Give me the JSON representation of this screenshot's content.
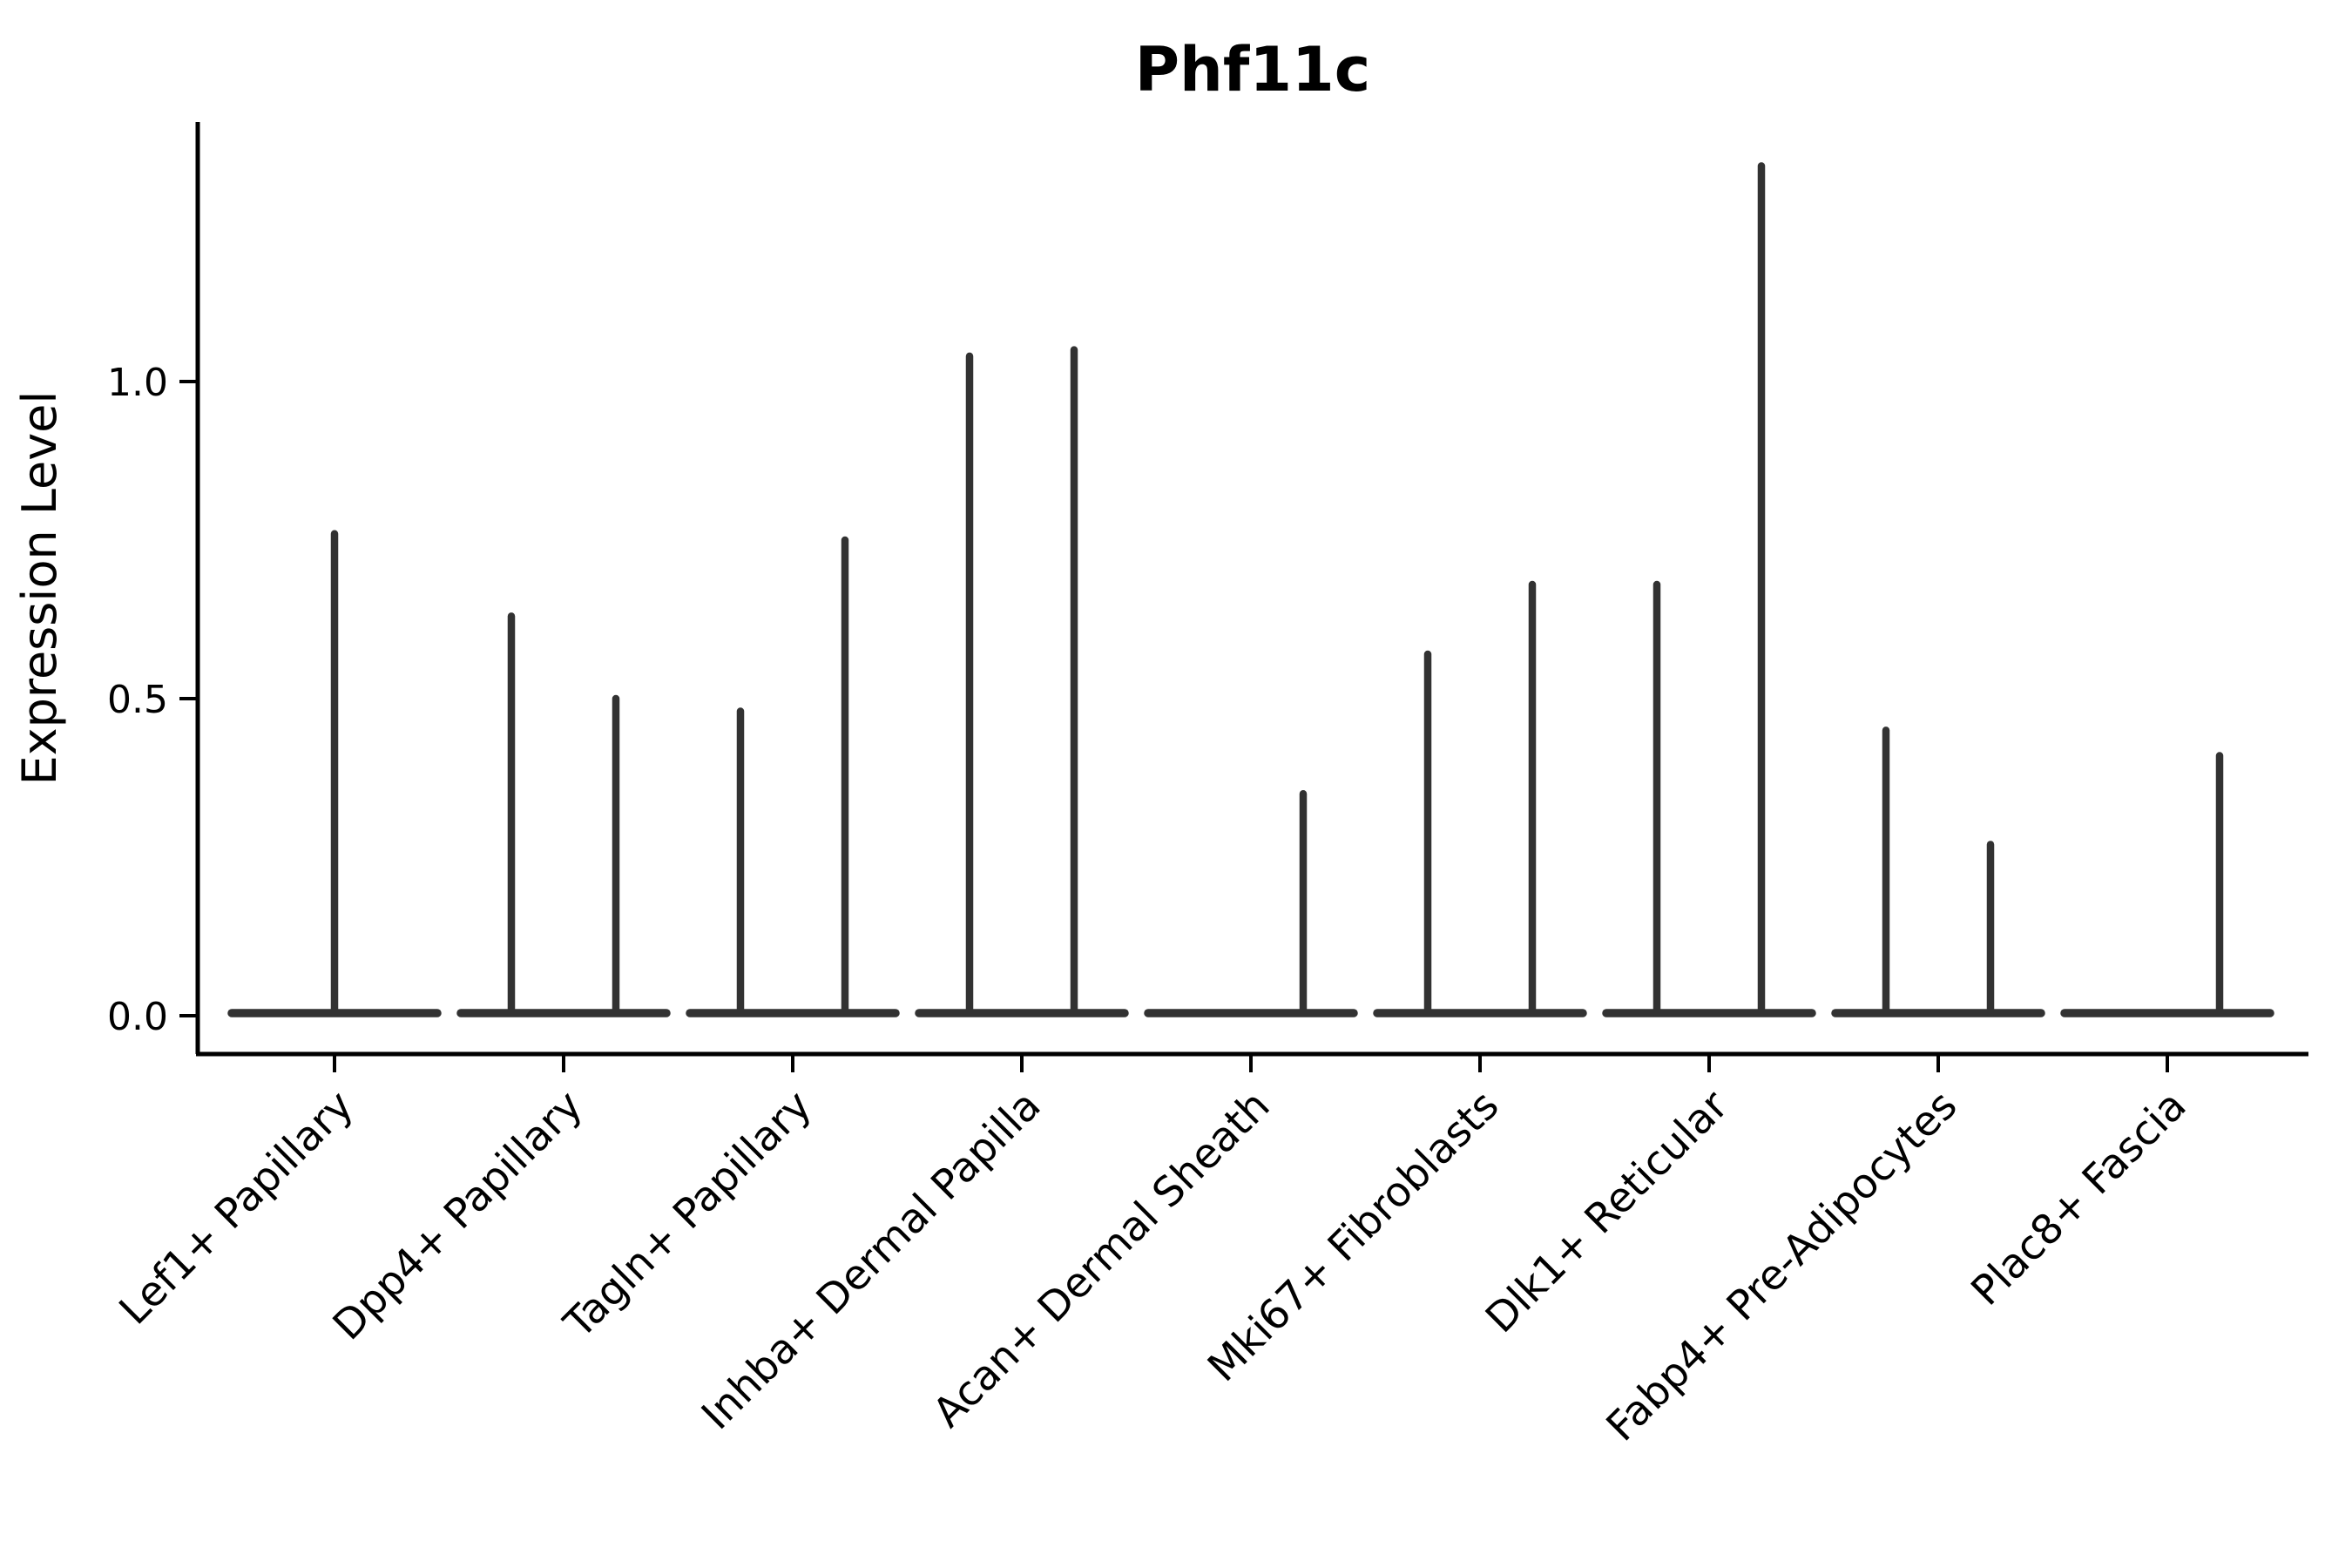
{
  "title": "Phf11c",
  "axes": {
    "y_label": "Expression Level",
    "y_tick_labels": [
      "0.0",
      "0.5",
      "1.0"
    ]
  },
  "chart_data": {
    "type": "violin",
    "title": "Phf11c",
    "ylabel": "Expression Level",
    "xlabel": "",
    "ylim": [
      0,
      1.41
    ],
    "grid": false,
    "legend": "none",
    "x_tick_rotation": 45,
    "categories": [
      "Lef1+ Papillary",
      "Dpp4+ Papillary",
      "Tagln+ Papillary",
      "Inhba+ Dermal Papilla",
      "Acan+ Dermal Sheath",
      "Mki67+ Fibroblasts",
      "Dlk1+ Reticular",
      "Fabp4+ Pre-Adipocytes",
      "Plac8+ Fascia"
    ],
    "yticks": [
      {
        "value": 0.0,
        "label": "0.0"
      },
      {
        "value": 0.5,
        "label": "0.5"
      },
      {
        "value": 1.0,
        "label": "1.0"
      }
    ],
    "description": "Collapsed violins: each category shows a flat density base at expression 0 plus thin vertical spikes reaching the maximum expression of each sub-group (left/right dodged violin, or a single centered violin).",
    "violins": [
      {
        "category": "Lef1+ Papillary",
        "spikes": [
          {
            "position": "center",
            "max": 0.76
          }
        ]
      },
      {
        "category": "Dpp4+ Papillary",
        "spikes": [
          {
            "position": "left",
            "max": 0.63
          },
          {
            "position": "right",
            "max": 0.5
          }
        ]
      },
      {
        "category": "Tagln+ Papillary",
        "spikes": [
          {
            "position": "left",
            "max": 0.48
          },
          {
            "position": "right",
            "max": 0.75
          }
        ]
      },
      {
        "category": "Inhba+ Dermal Papilla",
        "spikes": [
          {
            "position": "left",
            "max": 1.04
          },
          {
            "position": "right",
            "max": 1.05
          }
        ]
      },
      {
        "category": "Acan+ Dermal Sheath",
        "spikes": [
          {
            "position": "right",
            "max": 0.35
          }
        ]
      },
      {
        "category": "Mki67+ Fibroblasts",
        "spikes": [
          {
            "position": "left",
            "max": 0.57
          },
          {
            "position": "right",
            "max": 0.68
          }
        ]
      },
      {
        "category": "Dlk1+ Reticular",
        "spikes": [
          {
            "position": "left",
            "max": 0.68
          },
          {
            "position": "right",
            "max": 1.34
          }
        ]
      },
      {
        "category": "Fabp4+ Pre-Adipocytes",
        "spikes": [
          {
            "position": "left",
            "max": 0.45
          },
          {
            "position": "right",
            "max": 0.27
          }
        ]
      },
      {
        "category": "Plac8+ Fascia",
        "spikes": [
          {
            "position": "right",
            "max": 0.41
          }
        ]
      }
    ],
    "colors": {
      "violin_stroke": "#323232",
      "axis": "#000000",
      "text": "#000000",
      "background": "#ffffff"
    }
  }
}
